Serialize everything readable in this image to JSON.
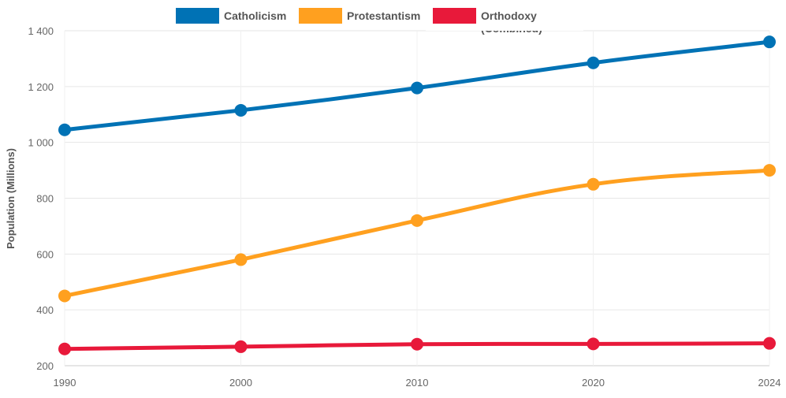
{
  "chart_data": {
    "type": "line",
    "title": "",
    "xlabel": "",
    "ylabel": "Population (Millions)",
    "categories": [
      "1990",
      "2000",
      "2010",
      "2020",
      "2024"
    ],
    "ylim": [
      200,
      1400
    ],
    "yticks": [
      200,
      400,
      600,
      800,
      1000,
      1200,
      1400
    ],
    "ytick_labels": [
      "200",
      "400",
      "600",
      "800",
      "1 000",
      "1 200",
      "1 400"
    ],
    "grid": true,
    "legend_position": "top",
    "series": [
      {
        "name": "Catholicism",
        "color": "#0072B5",
        "values": [
          1045,
          1115,
          1195,
          1285,
          1360
        ]
      },
      {
        "name": "Protestantism",
        "color": "#FFA01F",
        "values": [
          450,
          580,
          720,
          850,
          900
        ]
      },
      {
        "name": "Orthodoxy (Combined)",
        "name_lines": [
          "Orthodoxy",
          "(Combined)"
        ],
        "color": "#E8193A",
        "values": [
          260,
          268,
          277,
          278,
          280
        ]
      }
    ]
  }
}
